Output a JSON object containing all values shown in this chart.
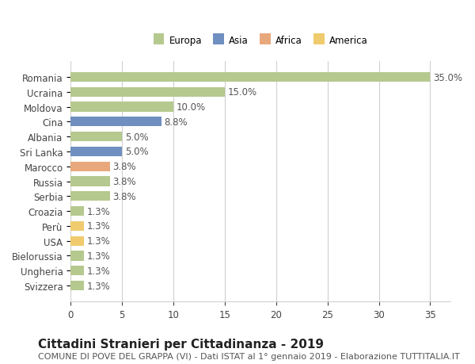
{
  "categories": [
    "Romania",
    "Ucraina",
    "Moldova",
    "Cina",
    "Albania",
    "Sri Lanka",
    "Marocco",
    "Russia",
    "Serbia",
    "Croazia",
    "Perù",
    "USA",
    "Bielorussia",
    "Ungheria",
    "Svizzera"
  ],
  "values": [
    35.0,
    15.0,
    10.0,
    8.8,
    5.0,
    5.0,
    3.8,
    3.8,
    3.8,
    1.3,
    1.3,
    1.3,
    1.3,
    1.3,
    1.3
  ],
  "continents": [
    "Europa",
    "Europa",
    "Europa",
    "Asia",
    "Europa",
    "Asia",
    "Africa",
    "Europa",
    "Europa",
    "Europa",
    "America",
    "America",
    "Europa",
    "Europa",
    "Europa"
  ],
  "continent_colors": {
    "Europa": "#b5c98e",
    "Asia": "#6e8fbf",
    "Africa": "#e8a87c",
    "America": "#f0cb6e"
  },
  "legend_order": [
    "Europa",
    "Asia",
    "Africa",
    "America"
  ],
  "title": "Cittadini Stranieri per Cittadinanza - 2019",
  "subtitle": "COMUNE DI POVE DEL GRAPPA (VI) - Dati ISTAT al 1° gennaio 2019 - Elaborazione TUTTITALIA.IT",
  "xlim": [
    0,
    37
  ],
  "xticks": [
    0,
    5,
    10,
    15,
    20,
    25,
    30,
    35
  ],
  "bg_color": "#ffffff",
  "grid_color": "#d0d0d0",
  "bar_height": 0.65,
  "label_fontsize": 8.5,
  "title_fontsize": 11,
  "subtitle_fontsize": 8,
  "tick_fontsize": 8.5
}
